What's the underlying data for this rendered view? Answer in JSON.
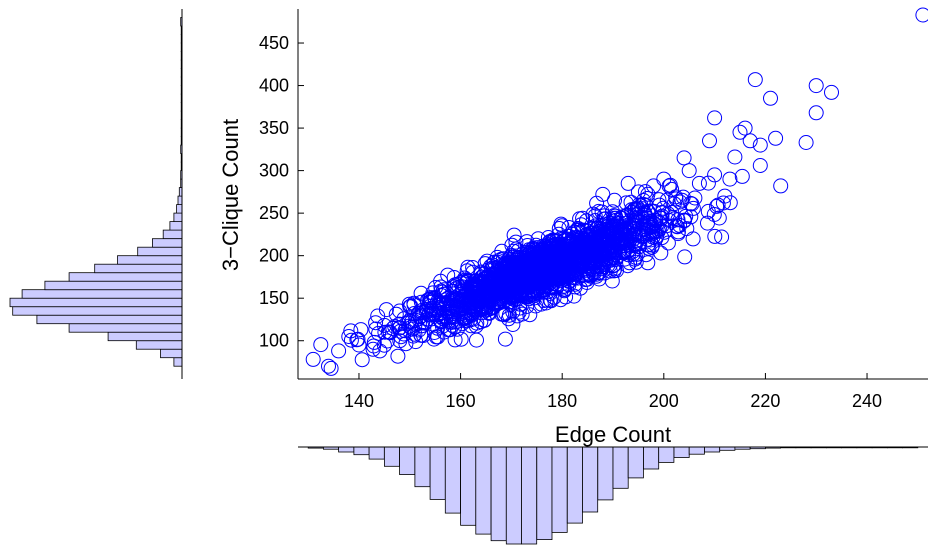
{
  "chart_data": {
    "type": "scatter",
    "title": "",
    "xlabel": "Edge Count",
    "ylabel": "3−Clique Count",
    "xlim": [
      128,
      252
    ],
    "ylim": [
      55,
      490
    ],
    "xticks": [
      140,
      160,
      180,
      200,
      220,
      240
    ],
    "yticks": [
      100,
      150,
      200,
      250,
      300,
      350,
      400,
      450
    ],
    "grid": false,
    "marker": "circle",
    "color": "#0000ff",
    "bar_color": "#ccccff",
    "cluster": {
      "count": 1800,
      "x_mean": 176,
      "x_sd": 12.5,
      "slope": 2.35,
      "intercept": -230,
      "noise_sd": 13
    },
    "outliers": [
      [
        131,
        78
      ],
      [
        134,
        70
      ],
      [
        218,
        407
      ],
      [
        221,
        385
      ],
      [
        230,
        400
      ],
      [
        233,
        392
      ],
      [
        230,
        368
      ],
      [
        228,
        333
      ],
      [
        223,
        282
      ],
      [
        210,
        362
      ],
      [
        215,
        345
      ],
      [
        216,
        350
      ],
      [
        217,
        335
      ],
      [
        219,
        330
      ],
      [
        209,
        335
      ],
      [
        222,
        338
      ],
      [
        214,
        316
      ],
      [
        219,
        306
      ],
      [
        251,
        483
      ],
      [
        205,
        300
      ],
      [
        210,
        295
      ],
      [
        213,
        290
      ],
      [
        207,
        285
      ],
      [
        212,
        270
      ],
      [
        204,
        315
      ],
      [
        200,
        290
      ],
      [
        195,
        275
      ],
      [
        198,
        282
      ],
      [
        188,
        272
      ],
      [
        193,
        285
      ],
      [
        150,
        140
      ],
      [
        152,
        128
      ],
      [
        148,
        135
      ],
      [
        155,
        150
      ],
      [
        138,
        105
      ],
      [
        136,
        88
      ],
      [
        140,
        95
      ],
      [
        145,
        118
      ],
      [
        160,
        168
      ],
      [
        165,
        172
      ],
      [
        170,
        186
      ],
      [
        175,
        196
      ]
    ],
    "x_histogram": {
      "bin_start": 130,
      "bin_width": 3,
      "counts": [
        2,
        4,
        9,
        14,
        22,
        35,
        50,
        72,
        95,
        120,
        142,
        158,
        170,
        176,
        176,
        168,
        155,
        138,
        118,
        96,
        75,
        56,
        40,
        28,
        19,
        13,
        9,
        6,
        4,
        3,
        2,
        1,
        1,
        0,
        1,
        0,
        1,
        0,
        0,
        1
      ]
    },
    "y_histogram": {
      "bin_start": 70,
      "bin_width": 10,
      "counts": [
        6,
        16,
        34,
        55,
        84,
        108,
        126,
        128,
        119,
        102,
        84,
        65,
        48,
        33,
        22,
        14,
        9,
        6,
        4,
        3,
        2,
        1,
        1,
        0,
        0,
        1,
        0,
        0,
        0,
        0,
        0,
        0,
        0,
        0,
        0,
        0,
        0,
        0,
        0,
        0,
        1
      ]
    }
  }
}
